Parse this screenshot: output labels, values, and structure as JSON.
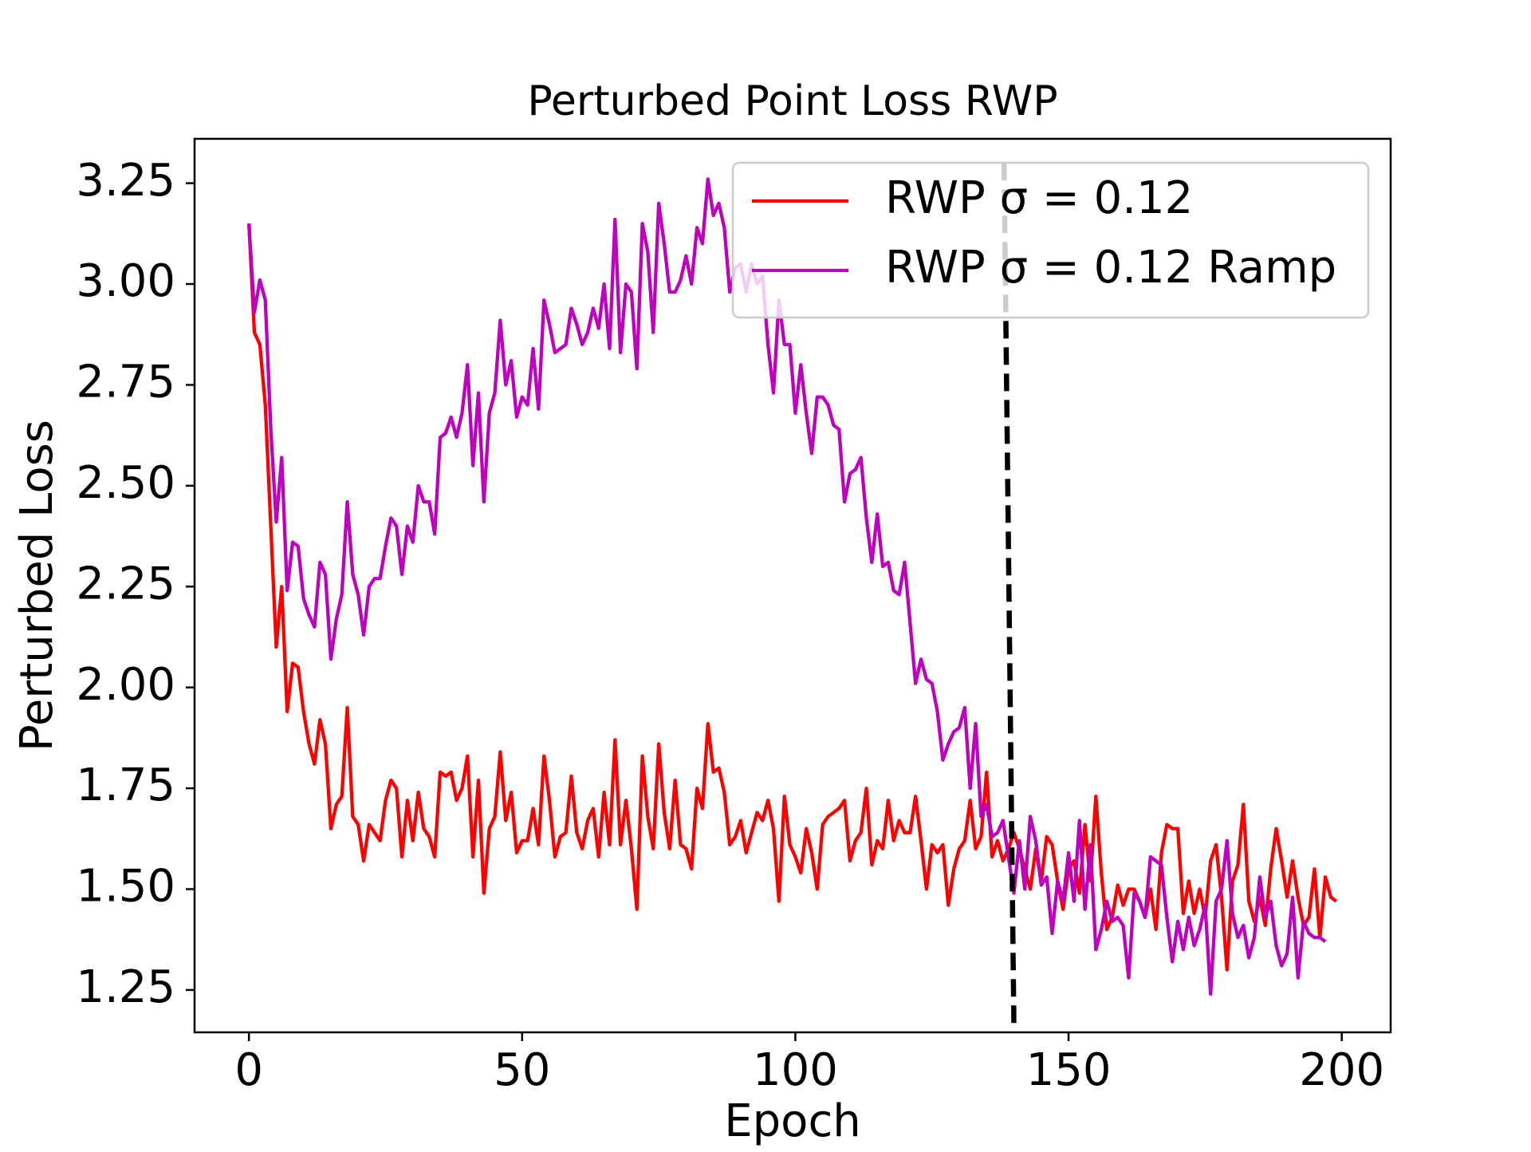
{
  "chart_data": {
    "type": "line",
    "title": "Perturbed Point Loss RWP",
    "xlabel": "Epoch",
    "ylabel": "Perturbed Loss",
    "xlim": [
      -9.95,
      208.95
    ],
    "ylim": [
      1.145,
      3.36
    ],
    "xticks": [
      0,
      50,
      100,
      150,
      200
    ],
    "yticks": [
      1.25,
      {
        "value": 1.5,
        "label": "1.50"
      },
      1.75,
      {
        "value": 2.0,
        "label": "2.00"
      },
      2.25,
      {
        "value": 2.5,
        "label": "2.50"
      },
      2.75,
      {
        "value": 3.0,
        "label": "3.00"
      },
      3.25
    ],
    "legend": "upper right",
    "grid": false,
    "vline": {
      "x": [
        138.2,
        140
      ],
      "y": [
        3.3,
        1.16
      ],
      "color": "#000000",
      "dashed": true
    },
    "series": [
      {
        "name": "RWP σ = 0.12",
        "color": "#ff0000",
        "values": [
          3.15,
          2.88,
          2.85,
          2.7,
          2.4,
          2.1,
          2.25,
          1.94,
          2.06,
          2.05,
          1.94,
          1.86,
          1.81,
          1.92,
          1.86,
          1.65,
          1.71,
          1.73,
          1.95,
          1.68,
          1.66,
          1.57,
          1.66,
          1.64,
          1.62,
          1.72,
          1.77,
          1.75,
          1.58,
          1.72,
          1.62,
          1.74,
          1.65,
          1.63,
          1.58,
          1.79,
          1.78,
          1.79,
          1.72,
          1.75,
          1.83,
          1.58,
          1.77,
          1.49,
          1.65,
          1.68,
          1.84,
          1.67,
          1.74,
          1.59,
          1.62,
          1.62,
          1.7,
          1.61,
          1.83,
          1.72,
          1.58,
          1.63,
          1.64,
          1.78,
          1.64,
          1.6,
          1.67,
          1.7,
          1.58,
          1.74,
          1.61,
          1.87,
          1.61,
          1.72,
          1.6,
          1.45,
          1.83,
          1.68,
          1.6,
          1.86,
          1.69,
          1.6,
          1.77,
          1.61,
          1.6,
          1.55,
          1.75,
          1.7,
          1.91,
          1.79,
          1.8,
          1.74,
          1.61,
          1.63,
          1.67,
          1.59,
          1.64,
          1.69,
          1.67,
          1.72,
          1.65,
          1.47,
          1.73,
          1.61,
          1.58,
          1.54,
          1.65,
          1.59,
          1.5,
          1.66,
          1.68,
          1.69,
          1.7,
          1.72,
          1.57,
          1.62,
          1.64,
          1.75,
          1.56,
          1.62,
          1.6,
          1.72,
          1.62,
          1.67,
          1.64,
          1.64,
          1.73,
          1.62,
          1.5,
          1.61,
          1.59,
          1.61,
          1.46,
          1.55,
          1.6,
          1.62,
          1.72,
          1.6,
          1.63,
          1.79,
          1.58,
          1.62,
          1.57,
          1.6,
          1.64,
          1.6,
          1.55,
          1.5,
          1.6,
          1.52,
          1.63,
          1.61,
          1.52,
          1.45,
          1.55,
          1.57,
          1.49,
          1.66,
          1.52,
          1.73,
          1.54,
          1.4,
          1.43,
          1.51,
          1.46,
          1.5,
          1.5,
          1.47,
          1.43,
          1.5,
          1.4,
          1.59,
          1.66,
          1.65,
          1.65,
          1.44,
          1.52,
          1.44,
          1.5,
          1.43,
          1.57,
          1.61,
          1.48,
          1.3,
          1.52,
          1.56,
          1.71,
          1.47,
          1.42,
          1.48,
          1.41,
          1.55,
          1.65,
          1.57,
          1.48,
          1.57,
          1.48,
          1.41,
          1.43,
          1.55,
          1.38,
          1.53,
          1.48,
          1.47
        ]
      },
      {
        "name": "RWP σ = 0.12 Ramp",
        "color": "#bf00bf",
        "values": [
          3.15,
          2.93,
          3.01,
          2.96,
          2.64,
          2.41,
          2.57,
          2.24,
          2.36,
          2.35,
          2.22,
          2.18,
          2.15,
          2.31,
          2.28,
          2.07,
          2.17,
          2.23,
          2.46,
          2.28,
          2.23,
          2.13,
          2.25,
          2.27,
          2.27,
          2.35,
          2.42,
          2.4,
          2.28,
          2.4,
          2.36,
          2.5,
          2.46,
          2.46,
          2.38,
          2.62,
          2.63,
          2.67,
          2.62,
          2.68,
          2.8,
          2.55,
          2.73,
          2.46,
          2.68,
          2.73,
          2.91,
          2.75,
          2.81,
          2.67,
          2.72,
          2.7,
          2.84,
          2.69,
          2.96,
          2.9,
          2.83,
          2.84,
          2.85,
          2.94,
          2.9,
          2.85,
          2.88,
          2.94,
          2.89,
          3.0,
          2.84,
          3.16,
          2.83,
          3.0,
          2.98,
          2.79,
          3.15,
          3.08,
          2.88,
          3.2,
          3.1,
          2.98,
          2.98,
          3.01,
          3.07,
          3.0,
          3.14,
          3.1,
          3.26,
          3.17,
          3.2,
          3.14,
          2.98,
          3.04,
          3.05,
          2.98,
          3.05,
          3.0,
          3.02,
          2.85,
          2.73,
          2.96,
          2.85,
          2.85,
          2.68,
          2.8,
          2.68,
          2.58,
          2.72,
          2.72,
          2.7,
          2.65,
          2.64,
          2.46,
          2.53,
          2.54,
          2.57,
          2.42,
          2.31,
          2.43,
          2.3,
          2.31,
          2.24,
          2.23,
          2.31,
          2.16,
          2.01,
          2.07,
          2.02,
          2.01,
          1.94,
          1.82,
          1.86,
          1.89,
          1.9,
          1.95,
          1.75,
          1.91,
          1.68,
          1.71,
          1.63,
          1.64,
          1.67,
          1.58,
          1.49,
          1.62,
          1.5,
          1.68,
          1.62,
          1.51,
          1.53,
          1.39,
          1.52,
          1.47,
          1.59,
          1.47,
          1.67,
          1.45,
          1.61,
          1.35,
          1.4,
          1.47,
          1.42,
          1.43,
          1.41,
          1.28,
          1.49,
          1.47,
          1.43,
          1.58,
          1.57,
          1.56,
          1.43,
          1.32,
          1.42,
          1.35,
          1.43,
          1.36,
          1.4,
          1.46,
          1.24,
          1.47,
          1.5,
          1.62,
          1.44,
          1.38,
          1.41,
          1.33,
          1.38,
          1.53,
          1.43,
          1.47,
          1.36,
          1.31,
          1.34,
          1.48,
          1.28,
          1.42,
          1.39,
          1.38,
          1.38,
          1.37
        ]
      }
    ]
  }
}
